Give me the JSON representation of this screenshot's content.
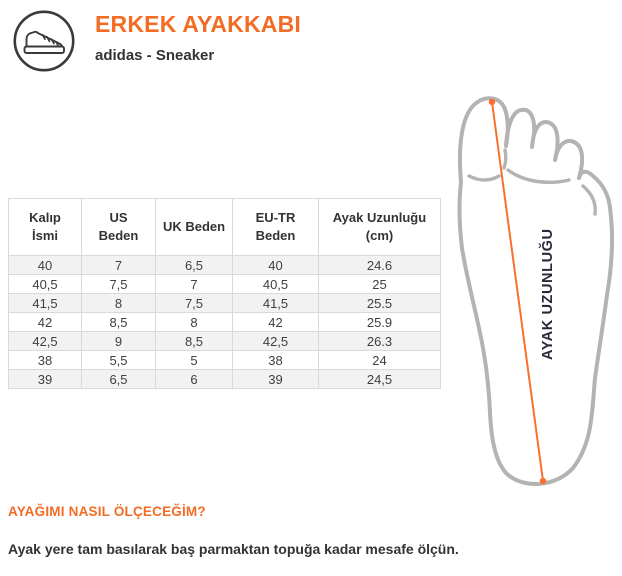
{
  "header": {
    "title": "ERKEK AYAKKABI",
    "subtitle": "adidas - Sneaker",
    "icon": "sneaker-icon"
  },
  "table": {
    "headers": [
      "Kalıp İsmi",
      "US Beden",
      "UK Beden",
      "EU-TR Beden",
      "Ayak Uzunluğu (cm)"
    ],
    "rows": [
      [
        "40",
        "7",
        "6,5",
        "40",
        "24.6"
      ],
      [
        "40,5",
        "7,5",
        "7",
        "40,5",
        "25"
      ],
      [
        "41,5",
        "8",
        "7,5",
        "41,5",
        "25.5"
      ],
      [
        "42",
        "8,5",
        "8",
        "42",
        "25.9"
      ],
      [
        "42,5",
        "9",
        "8,5",
        "42,5",
        "26.3"
      ],
      [
        "38",
        "5,5",
        "5",
        "38",
        "24"
      ],
      [
        "39",
        "6,5",
        "6",
        "39",
        "24,5"
      ]
    ]
  },
  "diagram": {
    "label": "AYAK UZUNLUĞU",
    "outline_color": "#b3b3b3",
    "measure_line_color": "#f9702e",
    "label_color": "#272b39"
  },
  "howto": {
    "heading": "AYAĞIMI NASIL ÖLÇECEĞİM?",
    "text": "Ayak yere tam basılarak baş parmaktan topuğa kadar mesafe ölçün."
  },
  "colors": {
    "accent": "#f26c25",
    "text_dark": "#333333",
    "table_border": "#d9d9d9",
    "row_alt": "#f2f2f2",
    "icon_stroke": "#3a3a3a"
  }
}
